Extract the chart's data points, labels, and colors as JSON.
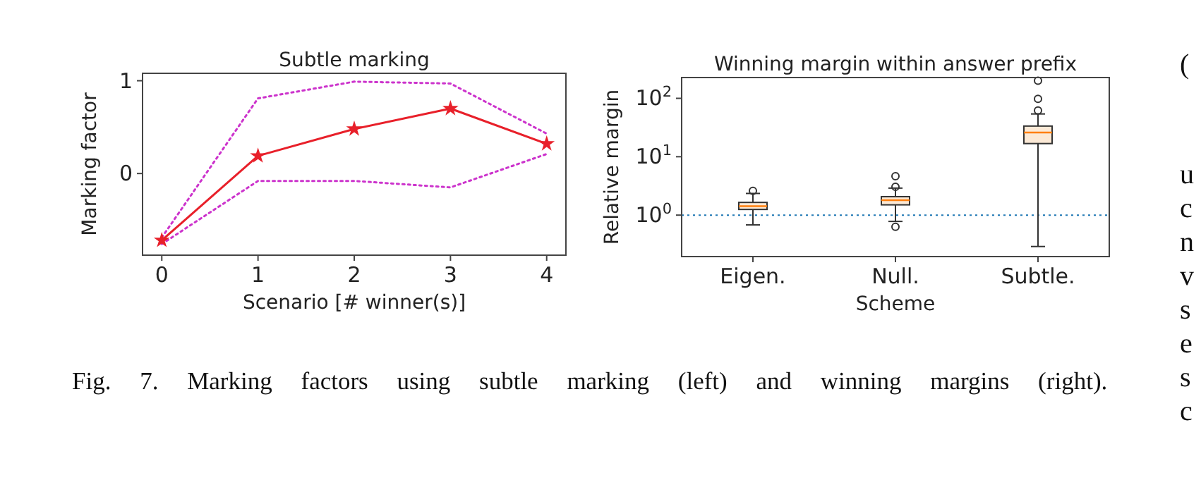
{
  "chart_data": [
    {
      "type": "line",
      "title": "Subtle marking",
      "xlabel": "Scenario [# winner(s)]",
      "ylabel": "Marking factor",
      "x": [
        0,
        1,
        2,
        3,
        4
      ],
      "xlim": [
        -0.2,
        4.2
      ],
      "xticks": [
        0,
        1,
        2,
        3,
        4
      ],
      "ylim": [
        -0.88,
        1.08
      ],
      "yticks": [
        0,
        1
      ],
      "grid": false,
      "series": [
        {
          "color": "#cc33cc",
          "line_style": "dotted",
          "marker": "none",
          "values": [
            -0.69,
            0.81,
            0.99,
            0.97,
            0.43
          ]
        },
        {
          "color": "#cc33cc",
          "line_style": "dotted",
          "marker": "none",
          "values": [
            -0.76,
            -0.08,
            -0.08,
            -0.15,
            0.21
          ]
        },
        {
          "color": "#e8202a",
          "line_style": "solid",
          "marker": "star",
          "values": [
            -0.72,
            0.19,
            0.48,
            0.7,
            0.32
          ]
        }
      ]
    },
    {
      "type": "box",
      "title": "Winning margin within answer prefix",
      "xlabel": "Scheme",
      "ylabel": "Relative margin",
      "categories": [
        "Eigen.",
        "Null.",
        "Subtle."
      ],
      "log": "y",
      "ylim": [
        0.195,
        227
      ],
      "yticks": [
        {
          "value": 1,
          "label": "10$^{0}$"
        },
        {
          "value": 10,
          "label": "10$^{1}$"
        },
        {
          "value": 100,
          "label": "10$^{2}$"
        }
      ],
      "grid": false,
      "boxes": [
        {
          "low": 0.68,
          "q1": 1.25,
          "median": 1.42,
          "q3": 1.65,
          "high": 2.35,
          "outliers": [
            2.6
          ]
        },
        {
          "low": 0.78,
          "q1": 1.5,
          "median": 1.8,
          "q3": 2.07,
          "high": 2.9,
          "outliers": [
            0.63,
            3.05,
            4.65
          ]
        },
        {
          "low": 0.29,
          "q1": 16.8,
          "median": 26,
          "q3": 33.5,
          "high": 54,
          "outliers": [
            62,
            98,
            200
          ]
        }
      ],
      "ref_lines": [
        {
          "axis": "y",
          "value": 1,
          "color": "#1f77b4",
          "line_style": "dotted"
        }
      ]
    },
    {
      "type": "other",
      "annotations": [
        "Fig. 7.  Marking factors using subtle marking (left) and winning margins (right).",
        "(",
        "u",
        "c",
        "n",
        "v",
        "s",
        "e",
        "s",
        "c"
      ]
    }
  ]
}
